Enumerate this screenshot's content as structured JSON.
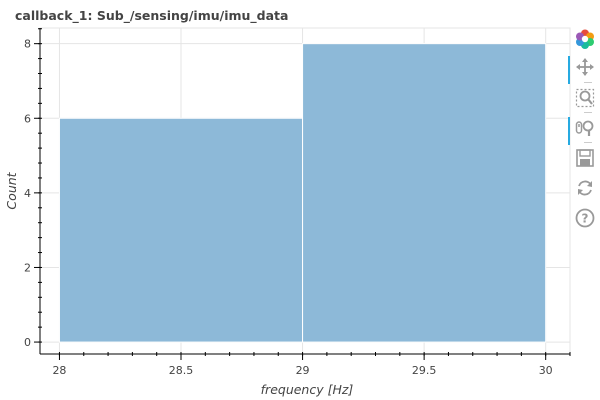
{
  "chart_data": {
    "type": "bar",
    "title": "callback_1: Sub_/sensing/imu/imu_data",
    "xlabel": "frequency [Hz]",
    "ylabel": "Count",
    "bins": [
      {
        "left": 28,
        "right": 29,
        "count": 6
      },
      {
        "left": 29,
        "right": 30,
        "count": 8
      }
    ],
    "xlim": [
      27.92,
      30.1
    ],
    "ylim": [
      -0.32,
      8.42
    ],
    "x_ticks": [
      28,
      28.5,
      29,
      29.5,
      30
    ],
    "x_tick_labels": [
      "28",
      "28.5",
      "29",
      "29.5",
      "30"
    ],
    "y_ticks": [
      0,
      2,
      4,
      6,
      8
    ],
    "y_tick_labels": [
      "0",
      "2",
      "4",
      "6",
      "8"
    ],
    "grid": true,
    "bar_color": "#8db9d8"
  },
  "toolbar": {
    "tools": [
      {
        "name": "bokeh-logo",
        "icon": "bokeh-logo-icon"
      },
      {
        "name": "pan",
        "icon": "pan-icon",
        "active": true
      },
      {
        "name": "box-zoom",
        "icon": "box-zoom-icon"
      },
      {
        "name": "wheel-zoom",
        "icon": "wheel-zoom-icon",
        "active": true
      },
      {
        "name": "save",
        "icon": "save-icon"
      },
      {
        "name": "reset",
        "icon": "reset-icon"
      },
      {
        "name": "help",
        "icon": "help-icon"
      }
    ],
    "accent_color": "#26aae1"
  }
}
